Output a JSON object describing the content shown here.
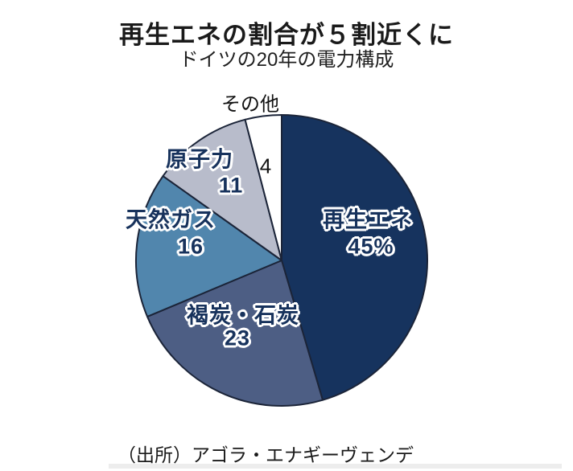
{
  "header": {
    "title": "再生エネの割合が５割近くに",
    "subtitle": "ドイツの20年の電力構成"
  },
  "source": "（出所）アゴラ・エナギーヴェンデ",
  "chart_data": {
    "type": "pie",
    "title": "再生エネの割合が５割近くに",
    "subtitle": "ドイツの20年の電力構成",
    "unit": "%",
    "direction": "clockwise",
    "start_angle": "12-oclock",
    "stroke_color": "#1b2438",
    "slices": [
      {
        "label": "再生エネ",
        "value": 45,
        "display_value": "45%",
        "color": "#16335e",
        "label_placement": "inside-halo"
      },
      {
        "label": "褐炭・石炭",
        "value": 23,
        "display_value": "23",
        "color": "#4d5e84",
        "label_placement": "inside-halo"
      },
      {
        "label": "天然ガス",
        "value": 16,
        "display_value": "16",
        "color": "#5186ad",
        "label_placement": "inside-halo"
      },
      {
        "label": "原子力",
        "value": 11,
        "display_value": "11",
        "color": "#b8bccb",
        "label_placement": "inside-halo"
      },
      {
        "label": "その他",
        "value": 4,
        "display_value": "4",
        "color": "#ffffff",
        "label_placement": "outside-plain"
      }
    ]
  }
}
